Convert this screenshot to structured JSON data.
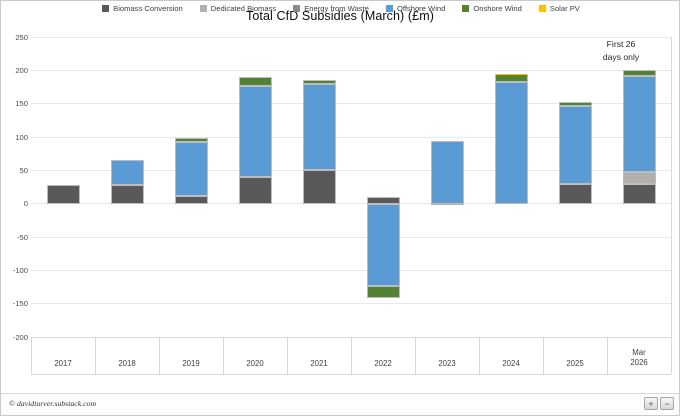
{
  "page": {
    "title": "Total CfD Subsidies (March) (£m)",
    "annotation": {
      "lines": [
        "First 26",
        "days only"
      ]
    },
    "footer": {
      "credit": "© davidturver.substack.com",
      "zoom_in": "+",
      "zoom_out": "−"
    }
  },
  "chart_data": {
    "type": "bar",
    "stacked": true,
    "title": "Total CfD Subsidies (March) (£m)",
    "xlabel": "",
    "ylabel": "",
    "ylim": [
      -200,
      250
    ],
    "yticks": [
      250,
      200,
      150,
      100,
      50,
      0,
      -50,
      -100,
      -150,
      -200
    ],
    "gridlines": true,
    "legend_position": "bottom",
    "annotation": {
      "text": "First 26 days only",
      "target_category": "Mar 2026"
    },
    "categories": [
      "2017",
      "2018",
      "2019",
      "2020",
      "2021",
      "2022",
      "2023",
      "2024",
      "2025",
      "Mar 2026"
    ],
    "series": [
      {
        "name": "Biomass Conversion",
        "color": "#595959",
        "values": [
          28,
          28,
          12,
          40,
          50,
          10,
          0,
          0,
          30,
          30
        ]
      },
      {
        "name": "Dedicated Biomass",
        "color": "#b3afac",
        "values": [
          0,
          0,
          0,
          0,
          0,
          0,
          -2,
          0,
          0,
          18
        ]
      },
      {
        "name": "Energy from Waste",
        "color": "#8d8a87",
        "values": [
          0,
          0,
          0,
          0,
          0,
          0,
          0,
          0,
          0,
          0
        ]
      },
      {
        "name": "Offshore Wind",
        "color": "#5b9bd5",
        "values": [
          0,
          37,
          80,
          137,
          130,
          -123,
          94,
          182,
          117,
          144
        ]
      },
      {
        "name": "Onshore Wind",
        "color": "#548235",
        "values": [
          0,
          0,
          7,
          13,
          6,
          -18,
          0,
          12,
          6,
          9
        ]
      },
      {
        "name": "Solar PV",
        "color": "#ffc000",
        "values": [
          0,
          0,
          0,
          0,
          0,
          0,
          0,
          1,
          0,
          0
        ]
      }
    ]
  }
}
